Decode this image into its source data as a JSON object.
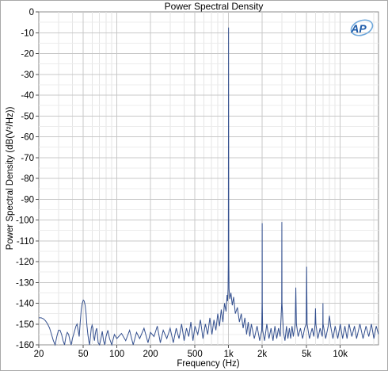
{
  "chart_data": {
    "type": "line",
    "title": "Power Spectral Density",
    "xlabel": "Frequency (Hz)",
    "ylabel": "Power Spectral Density (dB(V²/Hz))",
    "x_scale": "log",
    "xlim": [
      20,
      22000
    ],
    "ylim": [
      -160,
      0
    ],
    "y_ticks": [
      0,
      -10,
      -20,
      -30,
      -40,
      -50,
      -60,
      -70,
      -80,
      -90,
      -100,
      -110,
      -120,
      -130,
      -140,
      -150,
      -160
    ],
    "x_ticks": [
      {
        "value": 20,
        "label": "20"
      },
      {
        "value": 50,
        "label": "50"
      },
      {
        "value": 100,
        "label": "100"
      },
      {
        "value": 200,
        "label": "200"
      },
      {
        "value": 500,
        "label": "500"
      },
      {
        "value": 1000,
        "label": "1k"
      },
      {
        "value": 2000,
        "label": "2k"
      },
      {
        "value": 5000,
        "label": "5k"
      },
      {
        "value": 10000,
        "label": "10k"
      }
    ],
    "grid": true,
    "line_color": "#34508f",
    "floor_db": -153,
    "series": [
      {
        "values_note_free": true,
        "points": [
          [
            20,
            -147
          ],
          [
            21,
            -147
          ],
          [
            22,
            -147.5
          ],
          [
            23,
            -148.5
          ],
          [
            24,
            -150
          ],
          [
            25,
            -152
          ],
          [
            26,
            -155
          ],
          [
            27,
            -158
          ],
          [
            28,
            -160
          ],
          [
            29,
            -156
          ],
          [
            30,
            -153
          ],
          [
            31,
            -153
          ],
          [
            32,
            -155
          ],
          [
            33,
            -158
          ],
          [
            34,
            -160
          ],
          [
            35,
            -156
          ],
          [
            36,
            -154
          ],
          [
            37,
            -155
          ],
          [
            38,
            -158
          ],
          [
            39,
            -160
          ],
          [
            40,
            -157
          ],
          [
            41,
            -155
          ],
          [
            42,
            -153
          ],
          [
            43,
            -151
          ],
          [
            44,
            -150
          ],
          [
            45,
            -153
          ],
          [
            46,
            -156
          ],
          [
            47,
            -149
          ],
          [
            48,
            -143
          ],
          [
            49,
            -140
          ],
          [
            50,
            -138.5
          ],
          [
            51,
            -139
          ],
          [
            52,
            -141
          ],
          [
            53,
            -145
          ],
          [
            54,
            -151
          ],
          [
            55,
            -155
          ],
          [
            56,
            -158
          ],
          [
            57,
            -160
          ],
          [
            58,
            -156
          ],
          [
            59,
            -152
          ],
          [
            60,
            -150.5
          ],
          [
            61,
            -152
          ],
          [
            62,
            -156
          ],
          [
            63,
            -158
          ],
          [
            64,
            -155
          ],
          [
            65,
            -153
          ],
          [
            66,
            -152
          ],
          [
            67,
            -155
          ],
          [
            68,
            -159
          ],
          [
            70,
            -160
          ],
          [
            72,
            -157
          ],
          [
            74,
            -153.5
          ],
          [
            76,
            -158
          ],
          [
            78,
            -160
          ],
          [
            80,
            -156
          ],
          [
            83,
            -153
          ],
          [
            86,
            -157
          ],
          [
            90,
            -160
          ],
          [
            95,
            -155
          ],
          [
            100,
            -157
          ],
          [
            110,
            -154.5
          ],
          [
            120,
            -158
          ],
          [
            130,
            -153
          ],
          [
            140,
            -160
          ],
          [
            150,
            -154
          ],
          [
            160,
            -157
          ],
          [
            175,
            -152
          ],
          [
            190,
            -159
          ],
          [
            200,
            -154
          ],
          [
            215,
            -156
          ],
          [
            230,
            -151
          ],
          [
            245,
            -159
          ],
          [
            260,
            -153
          ],
          [
            280,
            -157
          ],
          [
            300,
            -152
          ],
          [
            320,
            -159
          ],
          [
            340,
            -152
          ],
          [
            360,
            -157
          ],
          [
            380,
            -150
          ],
          [
            400,
            -158
          ],
          [
            420,
            -152
          ],
          [
            440,
            -156
          ],
          [
            460,
            -149
          ],
          [
            480,
            -158
          ],
          [
            500,
            -151
          ],
          [
            530,
            -155
          ],
          [
            560,
            -148
          ],
          [
            590,
            -157
          ],
          [
            620,
            -150
          ],
          [
            650,
            -155
          ],
          [
            680,
            -147
          ],
          [
            710,
            -155
          ],
          [
            740,
            -148
          ],
          [
            770,
            -153
          ],
          [
            800,
            -145
          ],
          [
            830,
            -151
          ],
          [
            860,
            -143
          ],
          [
            890,
            -149
          ],
          [
            920,
            -140
          ],
          [
            950,
            -144
          ],
          [
            970,
            -136
          ],
          [
            980,
            -139
          ],
          [
            990,
            -133
          ],
          [
            995,
            -120
          ],
          [
            1000,
            -7.5
          ],
          [
            1005,
            -120
          ],
          [
            1010,
            -133
          ],
          [
            1025,
            -138
          ],
          [
            1050,
            -135
          ],
          [
            1080,
            -141
          ],
          [
            1110,
            -137
          ],
          [
            1150,
            -145
          ],
          [
            1200,
            -142
          ],
          [
            1250,
            -149
          ],
          [
            1300,
            -145
          ],
          [
            1350,
            -152
          ],
          [
            1400,
            -147
          ],
          [
            1450,
            -155
          ],
          [
            1500,
            -149
          ],
          [
            1550,
            -156
          ],
          [
            1600,
            -150
          ],
          [
            1700,
            -157
          ],
          [
            1800,
            -151
          ],
          [
            1900,
            -158
          ],
          [
            1980,
            -153
          ],
          [
            1995,
            -140
          ],
          [
            2000,
            -101.5
          ],
          [
            2005,
            -140
          ],
          [
            2020,
            -153
          ],
          [
            2100,
            -158
          ],
          [
            2200,
            -150
          ],
          [
            2300,
            -157
          ],
          [
            2400,
            -152
          ],
          [
            2500,
            -158
          ],
          [
            2600,
            -151
          ],
          [
            2700,
            -157
          ],
          [
            2800,
            -152
          ],
          [
            2900,
            -156
          ],
          [
            2990,
            -140
          ],
          [
            3000,
            -101
          ],
          [
            3010,
            -140
          ],
          [
            3100,
            -154
          ],
          [
            3200,
            -158
          ],
          [
            3300,
            -151
          ],
          [
            3400,
            -157
          ],
          [
            3500,
            -152
          ],
          [
            3600,
            -157
          ],
          [
            3700,
            -151
          ],
          [
            3800,
            -156
          ],
          [
            3950,
            -150
          ],
          [
            4000,
            -132.5
          ],
          [
            4050,
            -150
          ],
          [
            4200,
            -156
          ],
          [
            4400,
            -152
          ],
          [
            4600,
            -157
          ],
          [
            4800,
            -152
          ],
          [
            4950,
            -150
          ],
          [
            5000,
            -122.5
          ],
          [
            5050,
            -150
          ],
          [
            5300,
            -157
          ],
          [
            5600,
            -152
          ],
          [
            5800,
            -156
          ],
          [
            5950,
            -150
          ],
          [
            6000,
            -142.5
          ],
          [
            6050,
            -150
          ],
          [
            6300,
            -157
          ],
          [
            6600,
            -152
          ],
          [
            6900,
            -156
          ],
          [
            6980,
            -150
          ],
          [
            7000,
            -140
          ],
          [
            7020,
            -150
          ],
          [
            7400,
            -157
          ],
          [
            7800,
            -151
          ],
          [
            8000,
            -146
          ],
          [
            8200,
            -151
          ],
          [
            8600,
            -157
          ],
          [
            9000,
            -151
          ],
          [
            9500,
            -157
          ],
          [
            10000,
            -150
          ],
          [
            10500,
            -157
          ],
          [
            11000,
            -151
          ],
          [
            11500,
            -157
          ],
          [
            12000,
            -150
          ],
          [
            12700,
            -156
          ],
          [
            13400,
            -151
          ],
          [
            14000,
            -157
          ],
          [
            15000,
            -150
          ],
          [
            16000,
            -157
          ],
          [
            17000,
            -151
          ],
          [
            18000,
            -156
          ],
          [
            19000,
            -150
          ],
          [
            20000,
            -157
          ],
          [
            21000,
            -151
          ],
          [
            22000,
            -155
          ]
        ]
      }
    ]
  },
  "logo": {
    "text": "AP",
    "color": "#1c5aa8"
  }
}
